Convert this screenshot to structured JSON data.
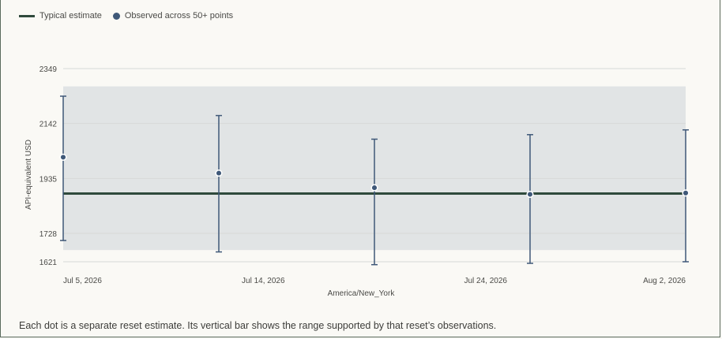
{
  "legend": {
    "typical_label": "Typical estimate",
    "observed_label": "Observed across 50+ points"
  },
  "caption": "Each dot is a separate reset estimate. Its vertical bar shows the range supported by that reset’s observations.",
  "colors": {
    "typical_line": "#2f4a3c",
    "observed": "#3f5878",
    "band": "#e1e4e5"
  },
  "chart_data": {
    "type": "scatter",
    "xlabel": "America/New_York",
    "ylabel": "API-equivalent USD",
    "ylim": [
      1621,
      2349
    ],
    "yticks": [
      "1621",
      "1728",
      "1935",
      "2142",
      "2349"
    ],
    "xlim": [
      "2026-07-05",
      "2026-08-02"
    ],
    "xticks": [
      {
        "date": "2026-07-05",
        "label": "Jul 5, 2026"
      },
      {
        "date": "2026-07-14",
        "label": "Jul 14, 2026"
      },
      {
        "date": "2026-07-24",
        "label": "Jul 24, 2026"
      },
      {
        "date": "2026-08-02",
        "label": "Aug 2, 2026"
      }
    ],
    "grid": true,
    "band": {
      "low": 1665,
      "high": 2282
    },
    "typical_estimate": 1878,
    "series": [
      {
        "points": [
          {
            "x": "2026-07-05",
            "y": 2015,
            "low": 1701,
            "high": 2245
          },
          {
            "x": "2026-07-12",
            "y": 1955,
            "low": 1658,
            "high": 2172
          },
          {
            "x": "2026-07-19",
            "y": 1900,
            "low": 1610,
            "high": 2083
          },
          {
            "x": "2026-07-26",
            "y": 1875,
            "low": 1615,
            "high": 2100
          },
          {
            "x": "2026-08-02",
            "y": 1880,
            "low": 1621,
            "high": 2118
          }
        ]
      }
    ]
  }
}
